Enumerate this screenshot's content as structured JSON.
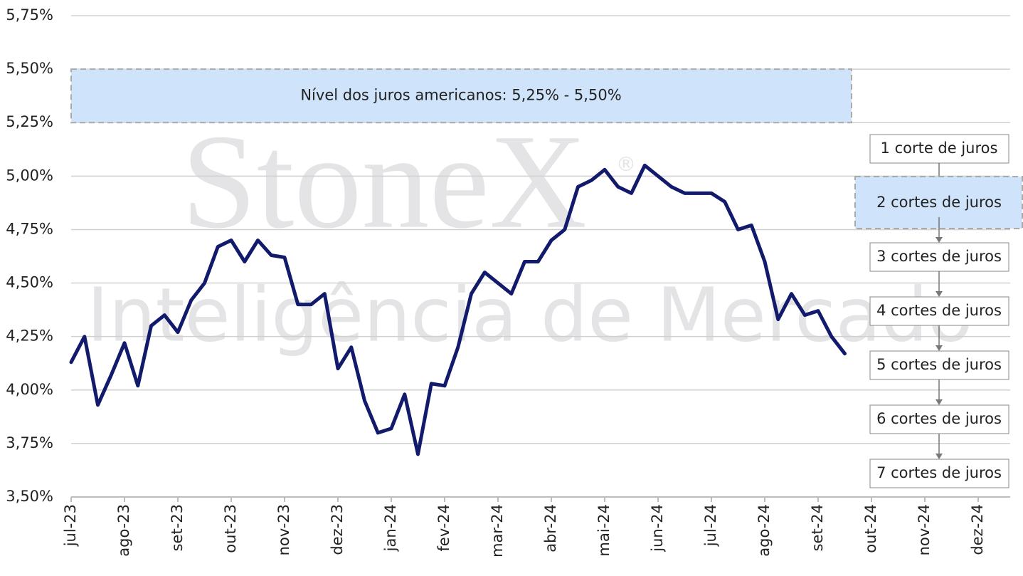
{
  "chart_data": {
    "type": "line",
    "categories": [
      "jul-23",
      null,
      null,
      null,
      "ago-23",
      null,
      null,
      null,
      "set-23",
      null,
      null,
      null,
      "out-23",
      null,
      null,
      null,
      "nov-23",
      null,
      null,
      null,
      "dez-23",
      null,
      null,
      null,
      "jan-24",
      null,
      null,
      null,
      "fev-24",
      null,
      null,
      null,
      "mar-24",
      null,
      null,
      null,
      "abr-24",
      null,
      null,
      null,
      "mai-24",
      null,
      null,
      null,
      "jun-24",
      null,
      null,
      null,
      "jul-24",
      null,
      null,
      null,
      "ago-24",
      null,
      null,
      null,
      "set-24",
      null,
      null,
      null,
      "out-24",
      null,
      null,
      null,
      "nov-24",
      null,
      null,
      null,
      "dez-24"
    ],
    "series": [
      {
        "color": "#111a6b",
        "values": [
          4.13,
          4.25,
          3.93,
          4.07,
          4.22,
          4.02,
          4.3,
          4.35,
          4.27,
          4.42,
          4.5,
          4.67,
          4.7,
          4.6,
          4.7,
          4.63,
          4.62,
          4.4,
          4.4,
          4.45,
          4.1,
          4.2,
          3.95,
          3.8,
          3.82,
          3.98,
          3.7,
          4.03,
          4.02,
          4.2,
          4.45,
          4.55,
          4.5,
          4.45,
          4.6,
          4.6,
          4.7,
          4.75,
          4.95,
          4.98,
          5.03,
          4.95,
          4.92,
          5.05,
          5.0,
          4.95,
          4.92,
          4.92,
          4.92,
          4.88,
          4.75,
          4.77,
          4.6,
          4.33,
          4.45,
          4.35,
          4.37,
          4.25,
          4.17,
          null,
          null,
          null,
          null,
          null,
          null,
          null,
          null,
          null,
          null
        ]
      }
    ],
    "ylim": [
      3.5,
      5.75
    ],
    "yticks": [
      {
        "value": 3.5,
        "label": "3,50%"
      },
      {
        "value": 3.75,
        "label": "3,75%"
      },
      {
        "value": 4.0,
        "label": "4,00%"
      },
      {
        "value": 4.25,
        "label": "4,25%"
      },
      {
        "value": 4.5,
        "label": "4,50%"
      },
      {
        "value": 4.75,
        "label": "4,75%"
      },
      {
        "value": 5.0,
        "label": "5,00%"
      },
      {
        "value": 5.25,
        "label": "5,25%"
      },
      {
        "value": 5.5,
        "label": "5,50%"
      },
      {
        "value": 5.75,
        "label": "5,75%"
      }
    ],
    "grid": true,
    "band": {
      "label": "Nível dos juros americanos: 5,25% - 5,50%",
      "range": [
        5.25,
        5.5
      ],
      "color": "#cfe4fb"
    },
    "scenarios": [
      "1 corte de juros",
      "2 cortes de juros",
      "3 cortes de juros",
      "4 cortes de juros",
      "5 cortes de juros",
      "6 cortes de juros",
      "7 cortes de juros"
    ],
    "highlight": 1,
    "watermark": {
      "brand": "StoneX",
      "mark": "®",
      "tagline": "Inteligência de Mercado"
    }
  }
}
